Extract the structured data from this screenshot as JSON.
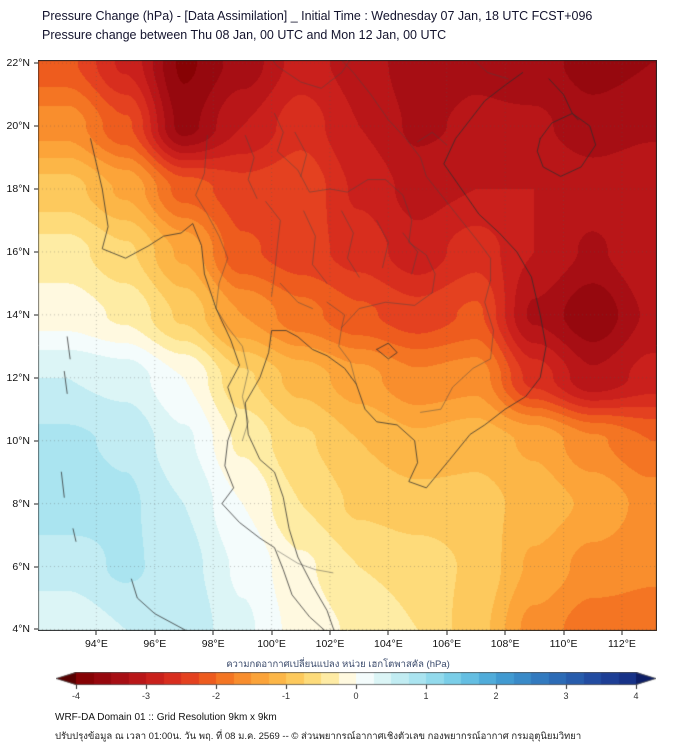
{
  "header": {
    "title_line1": "Pressure Change (hPa) - [Data Assimilation] _ Initial Time : Wednesday 07 Jan, 18 UTC FCST+096",
    "title_line2": "Pressure change between Thu 08 Jan, 00 UTC and Mon 12 Jan, 00 UTC"
  },
  "chart_data": {
    "type": "heatmap",
    "title": "Pressure Change (hPa) - [Data Assimilation]",
    "xlabel": "Longitude (°E)",
    "ylabel": "Latitude (°N)",
    "lon_range": [
      92.0,
      113.2
    ],
    "lat_range": [
      3.95,
      22.1
    ],
    "x_ticks": [
      {
        "value": 94,
        "label": "94°E"
      },
      {
        "value": 96,
        "label": "96°E"
      },
      {
        "value": 98,
        "label": "98°E"
      },
      {
        "value": 100,
        "label": "100°E"
      },
      {
        "value": 102,
        "label": "102°E"
      },
      {
        "value": 104,
        "label": "104°E"
      },
      {
        "value": 106,
        "label": "106°E"
      },
      {
        "value": 108,
        "label": "108°E"
      },
      {
        "value": 110,
        "label": "110°E"
      },
      {
        "value": 112,
        "label": "112°E"
      }
    ],
    "y_ticks": [
      {
        "value": 22,
        "label": "22°N"
      },
      {
        "value": 20,
        "label": "20°N"
      },
      {
        "value": 18,
        "label": "18°N"
      },
      {
        "value": 16,
        "label": "16°N"
      },
      {
        "value": 14,
        "label": "14°N"
      },
      {
        "value": 12,
        "label": "12°N"
      },
      {
        "value": 10,
        "label": "10°N"
      },
      {
        "value": 8,
        "label": "8°N"
      },
      {
        "value": 6,
        "label": "6°N"
      },
      {
        "value": 4,
        "label": "4°N"
      }
    ],
    "grid": {
      "lons": [
        93,
        95,
        97,
        99,
        101,
        103,
        105,
        107,
        109,
        111,
        113
      ],
      "lats": [
        22,
        20,
        18,
        16,
        14,
        12,
        10,
        8,
        6,
        4
      ],
      "values": [
        [
          -2.2,
          -2.8,
          -3.8,
          -3.4,
          -2.9,
          -3.1,
          -3.4,
          -3.3,
          -3.4,
          -3.6,
          -3.5
        ],
        [
          -1.6,
          -2.2,
          -3.6,
          -3.0,
          -2.6,
          -3.0,
          -3.3,
          -3.2,
          -3.2,
          -3.4,
          -3.3
        ],
        [
          -0.9,
          -1.3,
          -2.1,
          -2.4,
          -2.3,
          -2.8,
          -3.1,
          -3.0,
          -3.0,
          -3.1,
          -3.0
        ],
        [
          -0.4,
          -0.7,
          -1.3,
          -2.2,
          -2.4,
          -2.6,
          -2.9,
          -2.6,
          -3.0,
          -3.3,
          -3.0
        ],
        [
          -0.1,
          -0.3,
          -0.8,
          -1.5,
          -1.9,
          -2.2,
          -2.4,
          -2.2,
          -3.3,
          -3.7,
          -3.2
        ],
        [
          0.5,
          0.4,
          0.0,
          -0.7,
          -1.1,
          -1.4,
          -1.7,
          -1.6,
          -2.6,
          -3.2,
          -2.9
        ],
        [
          0.8,
          0.7,
          0.3,
          -0.3,
          -0.7,
          -1.0,
          -1.2,
          -1.1,
          -1.3,
          -1.7,
          -2.0
        ],
        [
          0.9,
          0.8,
          0.5,
          0.0,
          -0.5,
          -0.8,
          -0.9,
          -0.9,
          -1.1,
          -1.3,
          -1.6
        ],
        [
          0.6,
          0.8,
          0.6,
          0.2,
          -0.2,
          -0.5,
          -0.6,
          -0.8,
          -1.3,
          -1.6,
          -1.7
        ],
        [
          0.3,
          0.5,
          0.7,
          0.3,
          -0.1,
          -0.3,
          -0.5,
          -0.9,
          -1.6,
          -1.9,
          -1.9
        ]
      ]
    },
    "colormap": {
      "stops": [
        [
          -4.5,
          "#4f0000"
        ],
        [
          -4.0,
          "#7f0000"
        ],
        [
          -3.5,
          "#9e0a12"
        ],
        [
          -3.0,
          "#c21a1a"
        ],
        [
          -2.5,
          "#e03420"
        ],
        [
          -2.0,
          "#f2691e"
        ],
        [
          -1.5,
          "#fb9a32"
        ],
        [
          -1.0,
          "#fdc04e"
        ],
        [
          -0.5,
          "#fee489"
        ],
        [
          -0.25,
          "#fff3c0"
        ],
        [
          0.0,
          "#ffffff"
        ],
        [
          0.25,
          "#eafaf9"
        ],
        [
          0.5,
          "#cdf0f4"
        ],
        [
          1.0,
          "#9fe0ef"
        ],
        [
          1.5,
          "#6ec8e6"
        ],
        [
          2.0,
          "#46a3d6"
        ],
        [
          2.5,
          "#3582c4"
        ],
        [
          3.0,
          "#2a64b2"
        ],
        [
          3.5,
          "#20459c"
        ],
        [
          4.0,
          "#152c82"
        ],
        [
          4.5,
          "#0c1b60"
        ]
      ]
    },
    "colorbar": {
      "label": "ความกดอากาศเปลี่ยนแปลง หน่วย เฮกโตพาสคัล (hPa)",
      "range": [
        -4,
        4
      ],
      "ticks": [
        -4,
        -3,
        -2,
        -1,
        0,
        1,
        2,
        3,
        4
      ]
    },
    "basemap": {
      "coastlines": [
        [
          [
            93.8,
            19.6
          ],
          [
            94.2,
            18.0
          ],
          [
            94.4,
            16.8
          ],
          [
            94.2,
            16.1
          ],
          [
            95.0,
            15.8
          ],
          [
            95.8,
            16.2
          ],
          [
            96.3,
            16.5
          ],
          [
            96.9,
            16.6
          ],
          [
            97.3,
            16.9
          ],
          [
            97.6,
            16.2
          ],
          [
            97.7,
            15.3
          ],
          [
            98.1,
            14.2
          ],
          [
            98.6,
            13.2
          ],
          [
            98.9,
            12.4
          ],
          [
            98.5,
            11.7
          ],
          [
            98.8,
            10.8
          ],
          [
            98.5,
            10.0
          ],
          [
            98.4,
            9.2
          ],
          [
            98.7,
            8.5
          ],
          [
            98.3,
            8.0
          ],
          [
            98.9,
            7.4
          ],
          [
            99.6,
            6.9
          ],
          [
            100.1,
            6.6
          ],
          [
            100.4,
            5.9
          ],
          [
            100.7,
            5.1
          ],
          [
            101.3,
            4.4
          ],
          [
            101.9,
            3.9
          ]
        ],
        [
          [
            102.2,
            3.8
          ],
          [
            101.9,
            4.6
          ],
          [
            101.4,
            5.4
          ],
          [
            100.9,
            6.3
          ],
          [
            100.6,
            7.2
          ],
          [
            100.4,
            8.2
          ],
          [
            100.1,
            9.0
          ],
          [
            99.6,
            9.4
          ],
          [
            99.2,
            10.2
          ],
          [
            99.1,
            11.2
          ],
          [
            99.6,
            12.0
          ],
          [
            99.9,
            12.8
          ],
          [
            100.0,
            13.5
          ],
          [
            100.5,
            13.5
          ],
          [
            100.9,
            13.3
          ],
          [
            101.4,
            12.9
          ],
          [
            101.9,
            12.7
          ],
          [
            102.5,
            12.3
          ],
          [
            102.9,
            11.8
          ],
          [
            103.2,
            11.0
          ],
          [
            103.6,
            10.6
          ],
          [
            104.3,
            10.5
          ],
          [
            104.9,
            10.0
          ],
          [
            105.0,
            9.3
          ],
          [
            104.7,
            8.7
          ],
          [
            105.3,
            8.5
          ],
          [
            106.1,
            9.4
          ],
          [
            106.8,
            10.2
          ],
          [
            107.3,
            10.5
          ],
          [
            108.0,
            11.0
          ],
          [
            108.7,
            11.4
          ],
          [
            109.2,
            12.0
          ],
          [
            109.4,
            13.0
          ],
          [
            109.2,
            14.0
          ],
          [
            108.9,
            15.2
          ],
          [
            108.4,
            16.0
          ],
          [
            107.8,
            16.6
          ],
          [
            107.1,
            17.2
          ],
          [
            106.5,
            18.0
          ],
          [
            105.9,
            18.8
          ],
          [
            106.3,
            19.6
          ],
          [
            106.8,
            20.2
          ],
          [
            107.3,
            20.8
          ],
          [
            108.0,
            21.3
          ],
          [
            108.6,
            21.7
          ]
        ],
        [
          [
            109.2,
            19.6
          ],
          [
            109.6,
            20.1
          ],
          [
            110.3,
            20.4
          ],
          [
            110.9,
            20.0
          ],
          [
            111.1,
            19.4
          ],
          [
            110.6,
            18.7
          ],
          [
            109.9,
            18.4
          ],
          [
            109.3,
            18.7
          ],
          [
            109.1,
            19.2
          ],
          [
            109.2,
            19.6
          ]
        ],
        [
          [
            93.0,
            13.3
          ],
          [
            93.1,
            12.6
          ]
        ],
        [
          [
            92.9,
            12.2
          ],
          [
            93.0,
            11.5
          ]
        ],
        [
          [
            92.8,
            9.0
          ],
          [
            92.9,
            8.2
          ]
        ],
        [
          [
            93.2,
            7.2
          ],
          [
            93.3,
            6.8
          ]
        ],
        [
          [
            95.2,
            5.6
          ],
          [
            95.4,
            5.0
          ],
          [
            96.0,
            4.5
          ],
          [
            96.8,
            4.1
          ],
          [
            97.6,
            3.7
          ]
        ],
        [
          [
            109.5,
            21.5
          ],
          [
            110.0,
            21.0
          ],
          [
            110.3,
            20.4
          ],
          [
            110.5,
            20.2
          ]
        ],
        [
          [
            103.6,
            12.9
          ],
          [
            104.0,
            13.1
          ],
          [
            104.3,
            12.8
          ],
          [
            104.0,
            12.6
          ],
          [
            103.6,
            12.9
          ]
        ]
      ],
      "borders": [
        [
          [
            97.8,
            19.7
          ],
          [
            97.7,
            18.5
          ],
          [
            97.4,
            17.8
          ],
          [
            97.8,
            17.2
          ],
          [
            98.2,
            16.5
          ],
          [
            98.5,
            15.8
          ],
          [
            98.2,
            15.0
          ],
          [
            98.1,
            14.2
          ]
        ],
        [
          [
            98.1,
            14.2
          ],
          [
            98.5,
            13.6
          ],
          [
            99.0,
            13.0
          ],
          [
            99.2,
            12.2
          ],
          [
            99.0,
            11.4
          ],
          [
            99.2,
            10.6
          ],
          [
            99.0,
            10.0
          ]
        ],
        [
          [
            100.1,
            20.4
          ],
          [
            100.4,
            19.8
          ],
          [
            100.2,
            19.2
          ],
          [
            100.9,
            18.6
          ],
          [
            101.3,
            17.9
          ],
          [
            102.0,
            18.0
          ],
          [
            102.6,
            17.9
          ],
          [
            103.3,
            18.3
          ],
          [
            103.9,
            18.3
          ],
          [
            104.5,
            17.8
          ],
          [
            104.8,
            17.0
          ],
          [
            104.7,
            16.3
          ],
          [
            105.3,
            15.9
          ],
          [
            105.6,
            15.3
          ],
          [
            105.5,
            14.7
          ]
        ],
        [
          [
            102.9,
            11.8
          ],
          [
            102.7,
            12.5
          ],
          [
            102.3,
            13.0
          ],
          [
            102.4,
            13.6
          ],
          [
            103.0,
            14.2
          ],
          [
            103.9,
            14.4
          ],
          [
            104.9,
            14.3
          ],
          [
            105.5,
            14.7
          ]
        ],
        [
          [
            105.1,
            10.9
          ],
          [
            105.8,
            11.0
          ],
          [
            106.2,
            11.7
          ],
          [
            106.9,
            12.3
          ],
          [
            107.5,
            12.6
          ],
          [
            107.6,
            13.5
          ],
          [
            107.3,
            14.4
          ],
          [
            107.5,
            15.1
          ]
        ],
        [
          [
            102.1,
            22.4
          ],
          [
            102.8,
            21.7
          ],
          [
            103.4,
            21.0
          ],
          [
            104.0,
            20.2
          ],
          [
            104.6,
            19.6
          ],
          [
            105.1,
            19.0
          ],
          [
            105.3,
            18.4
          ],
          [
            105.9,
            17.7
          ],
          [
            106.5,
            17.0
          ],
          [
            107.1,
            16.3
          ],
          [
            107.5,
            15.8
          ],
          [
            107.5,
            15.1
          ]
        ],
        [
          [
            98.7,
            23.0
          ],
          [
            99.5,
            22.7
          ],
          [
            100.2,
            21.9
          ],
          [
            101.0,
            21.4
          ],
          [
            101.7,
            21.2
          ],
          [
            102.4,
            21.7
          ],
          [
            102.9,
            22.4
          ],
          [
            103.8,
            22.6
          ],
          [
            104.8,
            22.9
          ],
          [
            105.9,
            22.9
          ],
          [
            106.7,
            22.3
          ],
          [
            107.4,
            21.7
          ],
          [
            108.1,
            21.5
          ]
        ],
        [
          [
            100.2,
            6.5
          ],
          [
            100.9,
            6.1
          ],
          [
            101.5,
            5.9
          ],
          [
            102.1,
            5.8
          ]
        ],
        [
          [
            99.8,
            17.6
          ],
          [
            100.3,
            17.0
          ],
          [
            100.2,
            16.2
          ],
          [
            100.1,
            15.3
          ],
          [
            100.0,
            14.6
          ]
        ],
        [
          [
            101.1,
            17.3
          ],
          [
            101.5,
            16.5
          ],
          [
            101.4,
            15.6
          ],
          [
            101.9,
            15.0
          ]
        ],
        [
          [
            102.4,
            17.3
          ],
          [
            102.8,
            16.6
          ],
          [
            102.6,
            15.8
          ],
          [
            103.0,
            15.2
          ]
        ],
        [
          [
            103.6,
            17.0
          ],
          [
            104.0,
            16.3
          ],
          [
            103.8,
            15.5
          ]
        ],
        [
          [
            99.1,
            19.7
          ],
          [
            99.4,
            19.0
          ],
          [
            99.2,
            18.3
          ],
          [
            99.5,
            17.7
          ]
        ],
        [
          [
            100.8,
            19.8
          ],
          [
            101.2,
            19.1
          ],
          [
            101.0,
            18.4
          ]
        ],
        [
          [
            104.5,
            16.6
          ],
          [
            105.0,
            16.0
          ],
          [
            104.8,
            15.3
          ]
        ],
        [
          [
            101.9,
            14.4
          ],
          [
            102.5,
            14.0
          ],
          [
            102.4,
            13.6
          ]
        ],
        [
          [
            100.3,
            15.0
          ],
          [
            100.9,
            14.4
          ],
          [
            101.4,
            14.2
          ]
        ],
        [
          [
            105.0,
            19.5
          ],
          [
            105.5,
            19.8
          ],
          [
            106.0,
            19.4
          ]
        ]
      ]
    }
  },
  "footer": {
    "line1": "WRF-DA Domain 01 :: Grid Resolution 9km x 9km",
    "line2": "ปรับปรุงข้อมูล ณ เวลา 01:00น. วัน พฤ. ที่ 08 ม.ค. 2569 -- © ส่วนพยากรณ์อากาศเชิงตัวเลข กองพยากรณ์อากาศ กรมอุตุนิยมวิทยา"
  }
}
